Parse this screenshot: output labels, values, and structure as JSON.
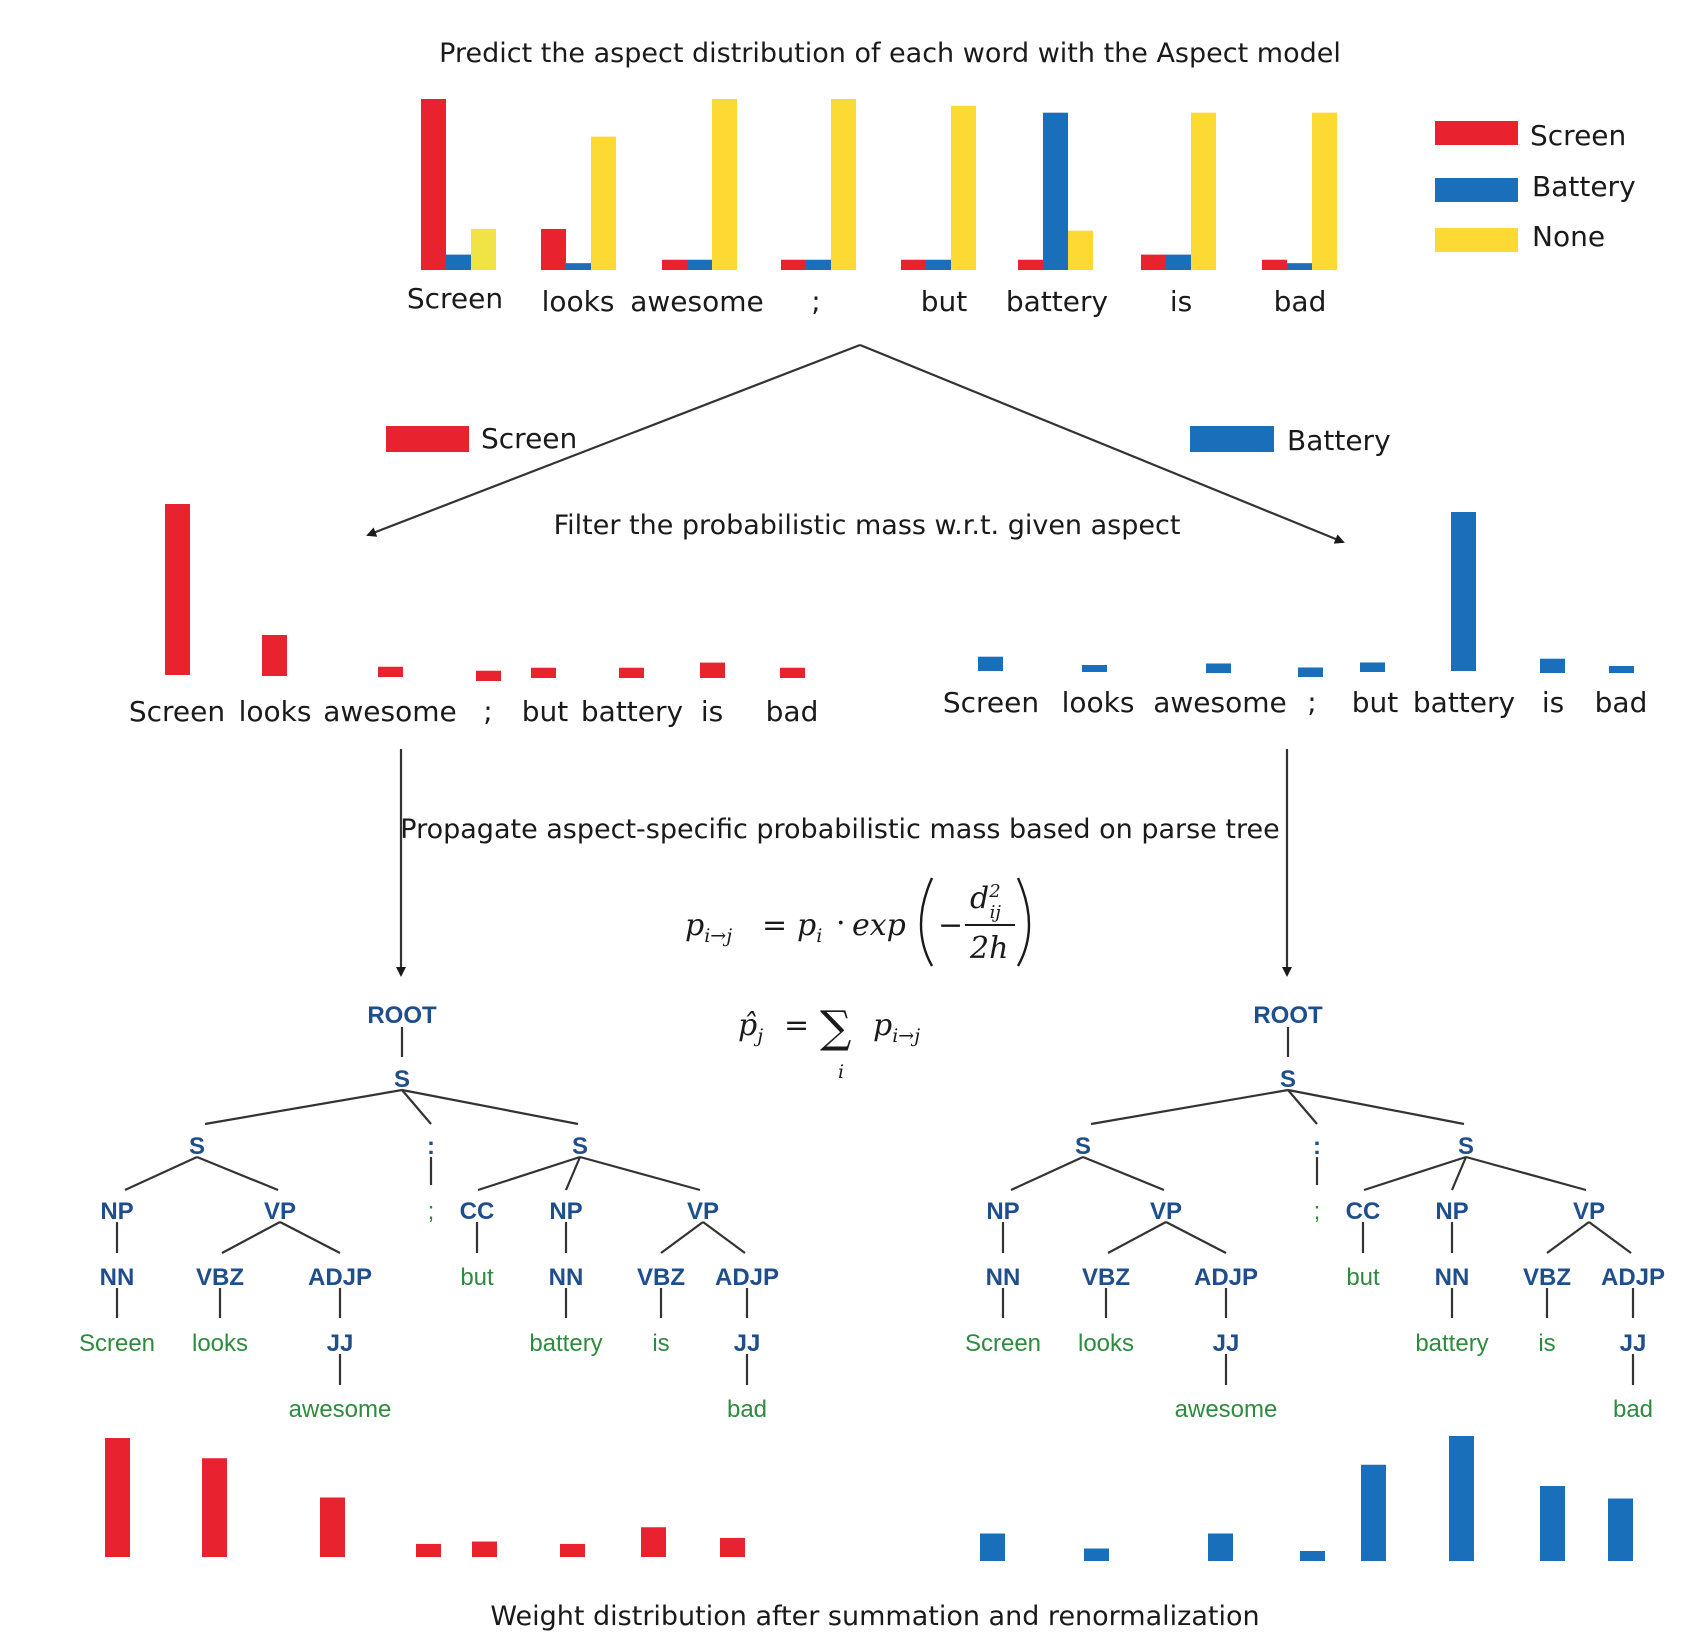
{
  "titles": {
    "top": "Predict the aspect distribution of each word with the Aspect model",
    "filter": "Filter the probabilistic mass w.r.t. given aspect",
    "propagate": "Propagate aspect-specific probabilistic mass based on parse tree",
    "bottom": "Weight distribution after summation and renormalization"
  },
  "colors": {
    "screen": "#e8222e",
    "battery": "#1a6fba",
    "none": "#fcd933",
    "none_light": "#f0e346",
    "tree_nonterminal": "#1f4e8c",
    "tree_leaf": "#2e8b3e"
  },
  "legend": {
    "screen": "Screen",
    "battery": "Battery",
    "none": "None"
  },
  "words": [
    "Screen",
    "looks",
    "awesome",
    ";",
    "but",
    "battery",
    "is",
    "bad"
  ],
  "aspect_labels": {
    "left": "Screen",
    "right": "Battery"
  },
  "formula": {
    "line1": {
      "lhs_p": "p",
      "lhs_sub": "i→j",
      "eq": "=",
      "p": "p",
      "p_sub": "i",
      "dot": "·",
      "exp": "exp",
      "minus": "−",
      "num_d": "d",
      "num_sup": "2",
      "num_sub": "ij",
      "den": "2h"
    },
    "line2": {
      "lhs": "p̂",
      "lhs_sub": "j",
      "eq": "=",
      "sum": "∑",
      "sum_sub": "i",
      "p": "p",
      "p_sub": "i→j"
    }
  },
  "parse_tree": {
    "root": "ROOT",
    "s": "S",
    "colon": ":",
    "semicolon": ";",
    "np": "NP",
    "vp": "VP",
    "cc": "CC",
    "nn": "NN",
    "vbz": "VBZ",
    "adjp": "ADJP",
    "jj": "JJ",
    "leaves": [
      "Screen",
      "looks",
      "awesome",
      "but",
      "battery",
      "is",
      "bad"
    ]
  },
  "chart_data": [
    {
      "type": "bar",
      "title": "Predict the aspect distribution of each word with the Aspect model",
      "categories": [
        "Screen",
        "looks",
        "awesome",
        ";",
        "but",
        "battery",
        "is",
        "bad"
      ],
      "series": [
        {
          "name": "Screen",
          "values": [
            1.0,
            0.24,
            0.06,
            0.06,
            0.06,
            0.06,
            0.09,
            0.06
          ]
        },
        {
          "name": "Battery",
          "values": [
            0.09,
            0.04,
            0.06,
            0.06,
            0.06,
            0.92,
            0.09,
            0.04
          ]
        },
        {
          "name": "None",
          "values": [
            0.24,
            0.78,
            1.0,
            1.0,
            0.96,
            0.23,
            0.92,
            0.92
          ]
        }
      ],
      "legend": "top-right"
    },
    {
      "type": "bar",
      "categories": [
        "Screen",
        "looks",
        "awesome",
        ";",
        "but",
        "battery",
        "is",
        "bad"
      ],
      "series": [
        {
          "name": "Screen",
          "values": [
            1.0,
            0.24,
            0.06,
            0.06,
            0.06,
            0.06,
            0.09,
            0.06
          ]
        }
      ]
    },
    {
      "type": "bar",
      "categories": [
        "Screen",
        "looks",
        "awesome",
        ";",
        "but",
        "battery",
        "is",
        "bad"
      ],
      "series": [
        {
          "name": "Battery",
          "values": [
            0.09,
            0.04,
            0.06,
            0.06,
            0.06,
            1.0,
            0.09,
            0.04
          ]
        }
      ]
    },
    {
      "type": "bar",
      "title": "Weight distribution after summation and renormalization",
      "categories": [
        "Screen",
        "looks",
        "awesome",
        ";",
        "but",
        "battery",
        "is",
        "bad"
      ],
      "series": [
        {
          "name": "Screen",
          "values": [
            1.0,
            0.83,
            0.5,
            0.11,
            0.13,
            0.11,
            0.25,
            0.16
          ]
        }
      ]
    },
    {
      "type": "bar",
      "title": "Weight distribution after summation and renormalization",
      "categories": [
        "Screen",
        "looks",
        "awesome",
        ";",
        "but",
        "battery",
        "is",
        "bad"
      ],
      "series": [
        {
          "name": "Battery",
          "values": [
            0.22,
            0.1,
            0.22,
            0.08,
            0.77,
            1.0,
            0.6,
            0.5
          ]
        }
      ]
    }
  ]
}
